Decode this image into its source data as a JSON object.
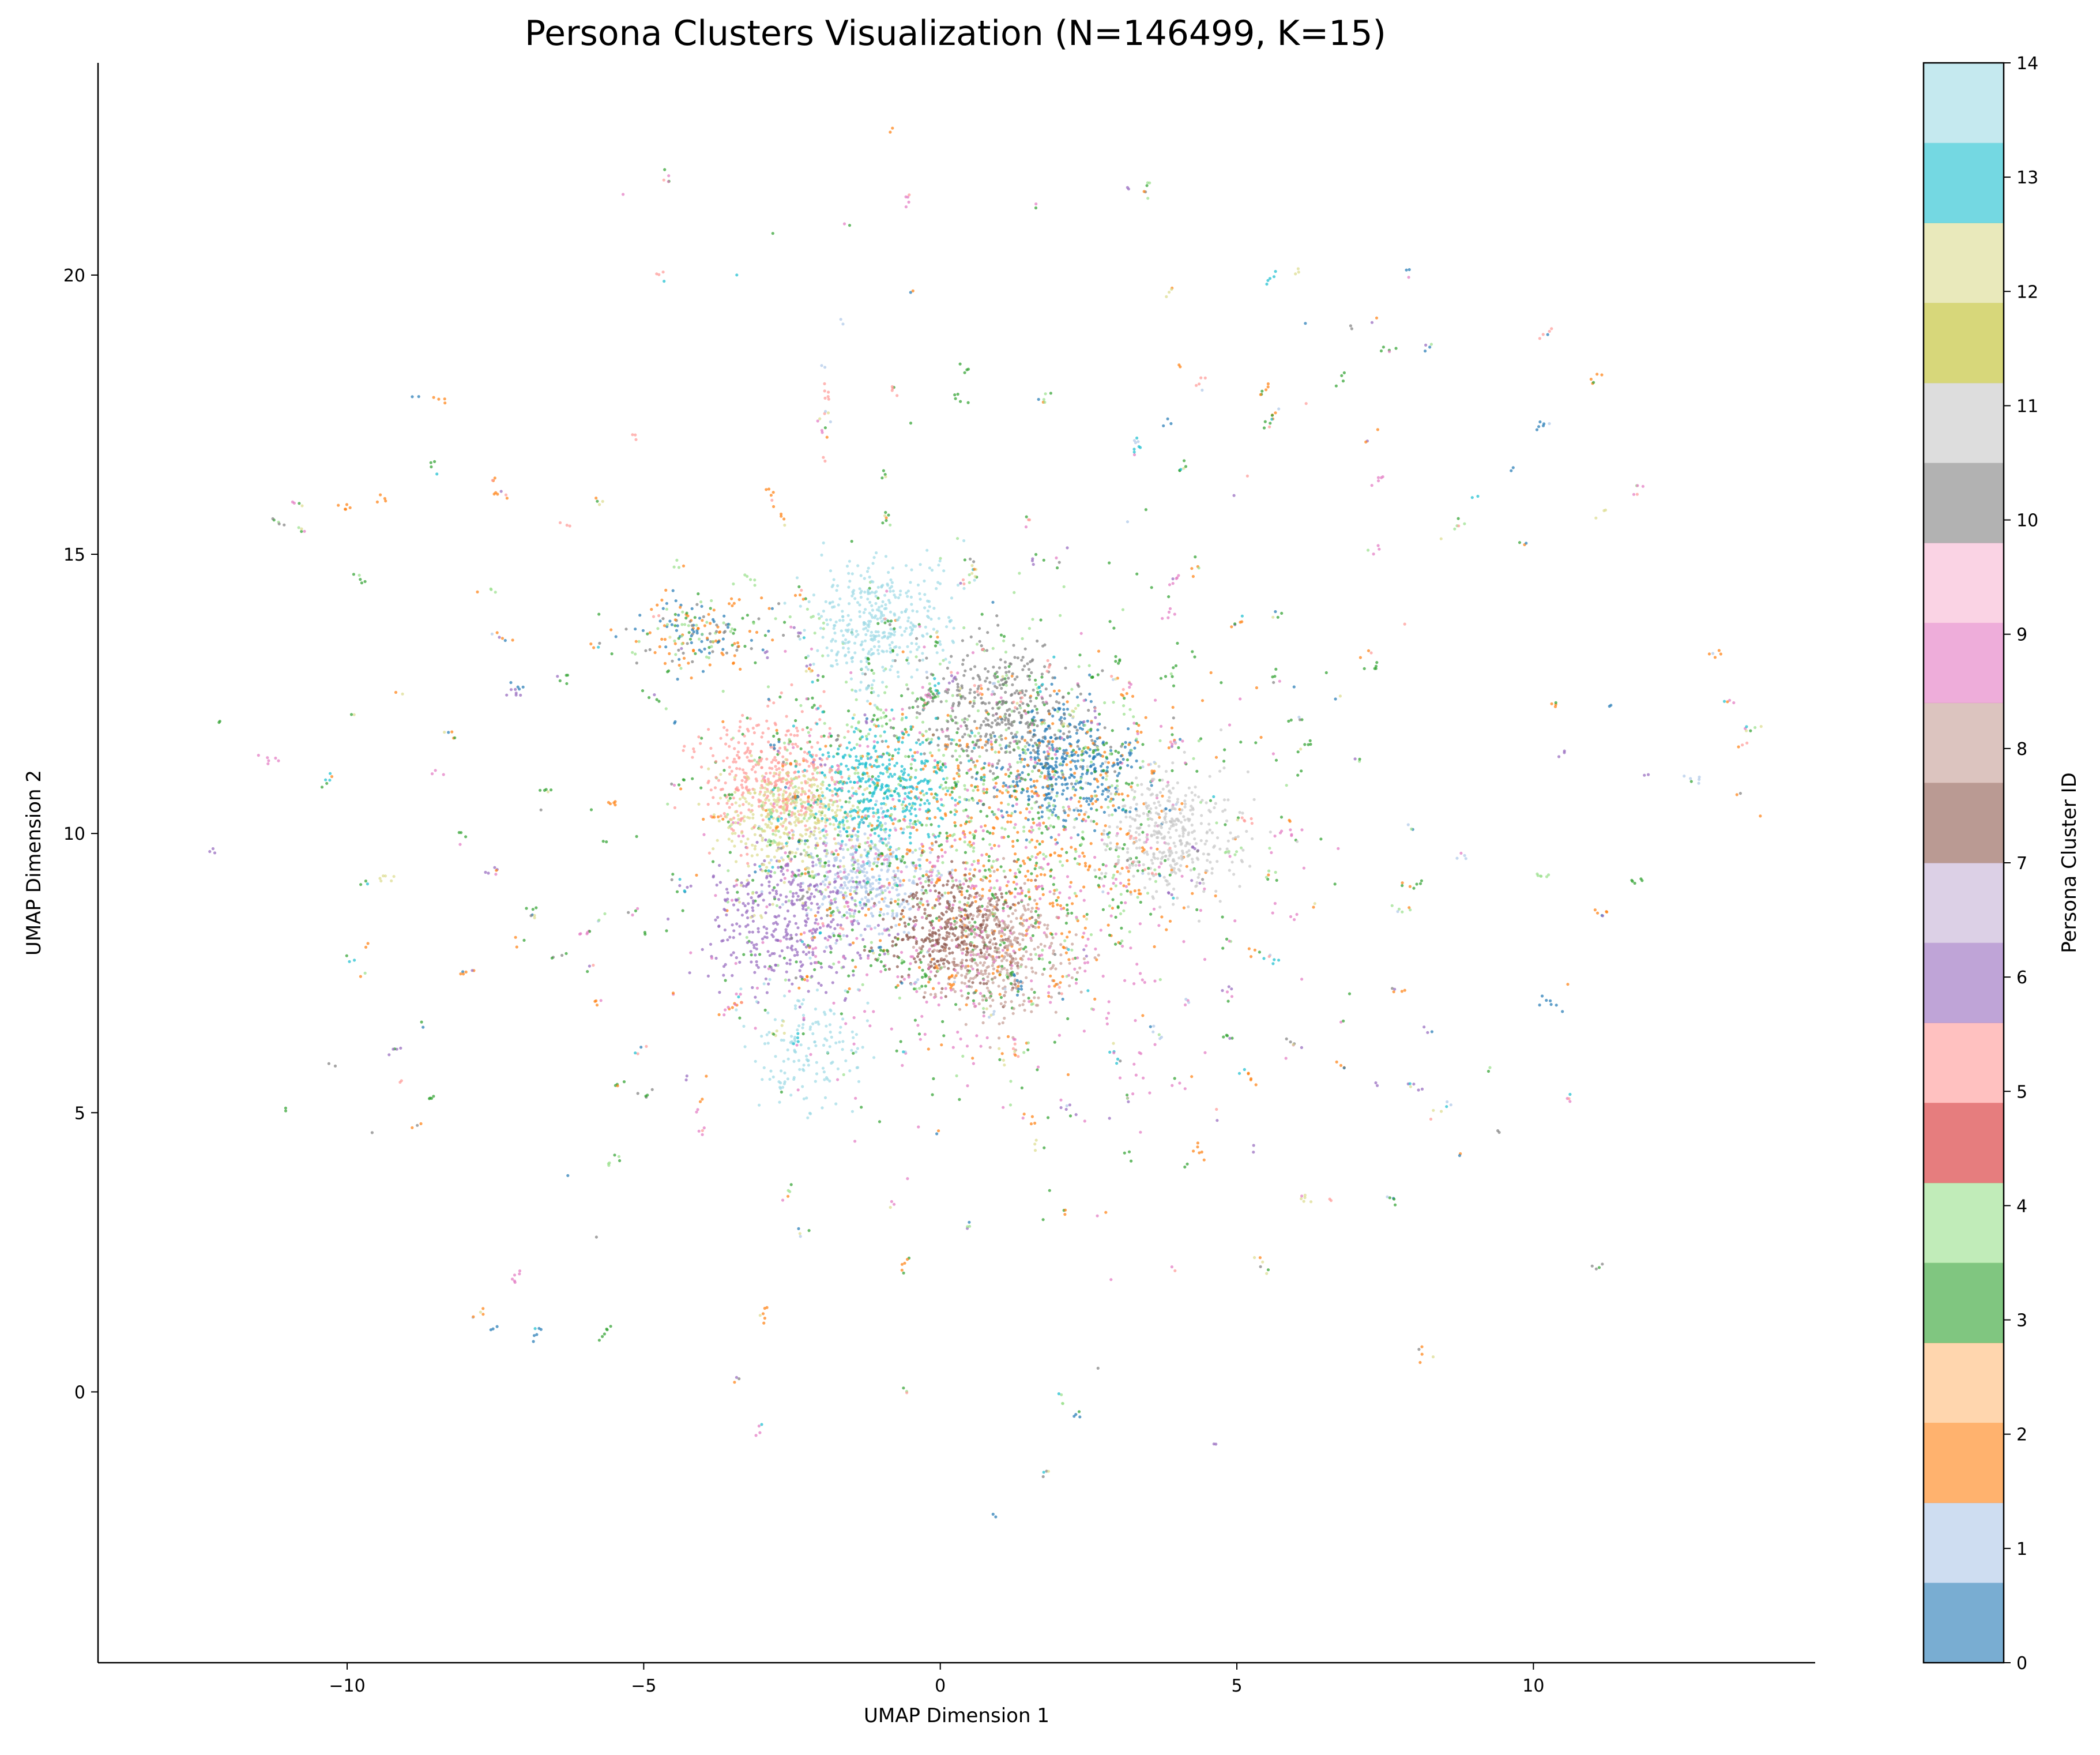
{
  "chart_data": {
    "type": "scatter",
    "title": "Persona Clusters Visualization (N=146499, K=15)",
    "xlabel": "UMAP Dimension 1",
    "ylabel": "UMAP Dimension 2",
    "xlim": [
      -14.2,
      14.75
    ],
    "ylim": [
      -4.85,
      23.8
    ],
    "xticks": [
      -10,
      -5,
      0,
      5,
      10
    ],
    "yticks": [
      0,
      5,
      10,
      15,
      20
    ],
    "xtick_labels": [
      "−10",
      "−5",
      "0",
      "5",
      "10"
    ],
    "ytick_labels": [
      "0",
      "5",
      "10",
      "15",
      "20"
    ],
    "grid": false,
    "legend": "none",
    "colorbar": {
      "label": "Persona Cluster ID",
      "range": [
        0,
        14
      ],
      "ticks": [
        "0",
        "1",
        "2",
        "3",
        "4",
        "5",
        "6",
        "7",
        "8",
        "9",
        "10",
        "11",
        "12",
        "13",
        "14"
      ],
      "colormap": "tab20",
      "band_colors": [
        "#1f77b4",
        "#aec7e8",
        "#ff7f0e",
        "#ffbb78",
        "#2ca02c",
        "#98df8a",
        "#d62728",
        "#ff9896",
        "#9467bd",
        "#c5b0d5",
        "#8c564b",
        "#c49c94",
        "#e377c2",
        "#f7b6d2",
        "#7f7f7f",
        "#c7c7c7",
        "#bcbd22",
        "#dbdb8d",
        "#17becf",
        "#9edae5"
      ]
    },
    "clusters": [
      {
        "id": 0,
        "color": "#1f77b4",
        "center": [
          2.0,
          11.2
        ],
        "spread": 0.6
      },
      {
        "id": 1,
        "color": "#aec7e8",
        "center": [
          -1.2,
          9.2
        ],
        "spread": 0.6
      },
      {
        "id": 2,
        "color": "#ff7f0e",
        "center": [
          1.0,
          10.0
        ],
        "spread": 1.6
      },
      {
        "id": 3,
        "color": "#2ca02c",
        "center": [
          0.5,
          10.0
        ],
        "spread": 2.2
      },
      {
        "id": 4,
        "color": "#98df8a",
        "center": [
          0.0,
          10.5
        ],
        "spread": 1.8
      },
      {
        "id": 5,
        "color": "#ff9896",
        "center": [
          -2.8,
          11.0
        ],
        "spread": 0.6
      },
      {
        "id": 6,
        "color": "#9467bd",
        "center": [
          -2.5,
          8.4
        ],
        "spread": 0.7
      },
      {
        "id": 7,
        "color": "#8c564b",
        "center": [
          0.2,
          8.3
        ],
        "spread": 0.55
      },
      {
        "id": 8,
        "color": "#c49c94",
        "center": [
          1.0,
          7.8
        ],
        "spread": 0.6
      },
      {
        "id": 9,
        "color": "#e377c2",
        "center": [
          0.5,
          9.0
        ],
        "spread": 2.0
      },
      {
        "id": 10,
        "color": "#7f7f7f",
        "center": [
          1.0,
          12.2
        ],
        "spread": 0.7
      },
      {
        "id": 11,
        "color": "#c7c7c7",
        "center": [
          3.9,
          10.0
        ],
        "spread": 0.6
      },
      {
        "id": 12,
        "color": "#dbdb8d",
        "center": [
          -2.5,
          10.3
        ],
        "spread": 0.6
      },
      {
        "id": 13,
        "color": "#17becf",
        "center": [
          -1.0,
          10.8
        ],
        "spread": 0.6
      },
      {
        "id": 14,
        "color": "#9edae5",
        "center": [
          -1.0,
          13.8
        ],
        "spread": 0.6
      }
    ]
  }
}
